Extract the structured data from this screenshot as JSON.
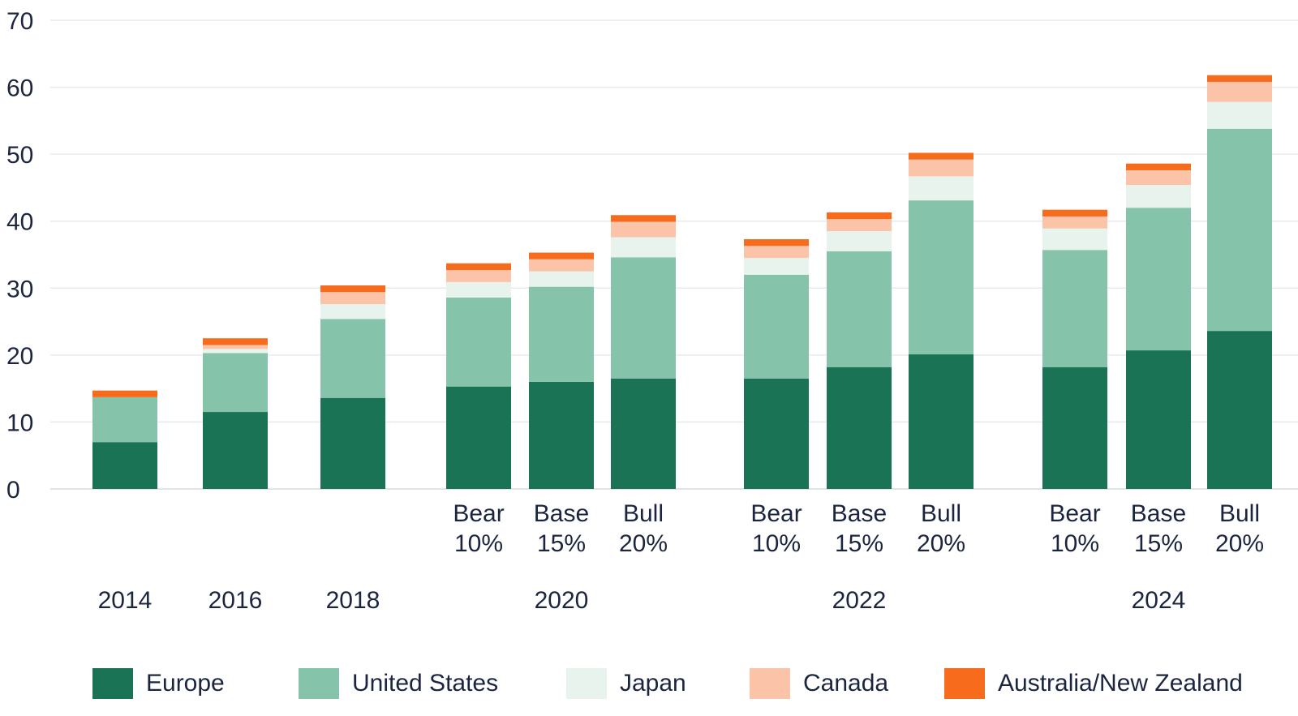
{
  "chart_data": {
    "type": "bar",
    "stacked": true,
    "ylim": [
      0,
      70
    ],
    "yticks": [
      "0",
      "10",
      "20",
      "30",
      "40",
      "50",
      "60",
      "70"
    ],
    "grid": true,
    "legend_position": "bottom",
    "series": [
      {
        "name": "Europe",
        "color": "#1a7355"
      },
      {
        "name": "United States",
        "color": "#85c4aa"
      },
      {
        "name": "Japan",
        "color": "#e8f3ee"
      },
      {
        "name": "Canada",
        "color": "#fbc4a8"
      },
      {
        "name": "Australia/New Zealand",
        "color": "#f76b1c"
      }
    ],
    "groups": [
      {
        "year": "2014",
        "bars": [
          {
            "label1": "",
            "label2": "",
            "values": [
              7,
              6.7,
              0,
              0,
              1.0
            ]
          }
        ]
      },
      {
        "year": "2016",
        "bars": [
          {
            "label1": "",
            "label2": "",
            "values": [
              11.5,
              8.8,
              0.6,
              0.6,
              1.0
            ]
          }
        ]
      },
      {
        "year": "2018",
        "bars": [
          {
            "label1": "",
            "label2": "",
            "values": [
              13.6,
              11.8,
              2.2,
              1.8,
              1.0
            ]
          }
        ]
      },
      {
        "year": "2020",
        "bars": [
          {
            "label1": "Bear",
            "label2": "10%",
            "values": [
              15.3,
              13.3,
              2.3,
              1.8,
              1.0
            ]
          },
          {
            "label1": "Base",
            "label2": "15%",
            "values": [
              16.0,
              14.2,
              2.3,
              1.8,
              1.0
            ]
          },
          {
            "label1": "Bull",
            "label2": "20%",
            "values": [
              16.5,
              18.1,
              3.0,
              2.3,
              1.0
            ]
          }
        ]
      },
      {
        "year": "2022",
        "bars": [
          {
            "label1": "Bear",
            "label2": "10%",
            "values": [
              16.5,
              15.5,
              2.5,
              1.8,
              1.0
            ]
          },
          {
            "label1": "Base",
            "label2": "15%",
            "values": [
              18.2,
              17.3,
              3.0,
              1.8,
              1.0
            ]
          },
          {
            "label1": "Bull",
            "label2": "20%",
            "values": [
              20.1,
              23.0,
              3.6,
              2.5,
              1.0
            ]
          }
        ]
      },
      {
        "year": "2024",
        "bars": [
          {
            "label1": "Bear",
            "label2": "10%",
            "values": [
              18.2,
              17.5,
              3.2,
              1.8,
              1.0
            ]
          },
          {
            "label1": "Base",
            "label2": "15%",
            "values": [
              20.7,
              21.3,
              3.4,
              2.2,
              1.0
            ]
          },
          {
            "label1": "Bull",
            "label2": "20%",
            "values": [
              23.6,
              30.2,
              4.0,
              3.0,
              1.0
            ]
          }
        ]
      }
    ]
  }
}
